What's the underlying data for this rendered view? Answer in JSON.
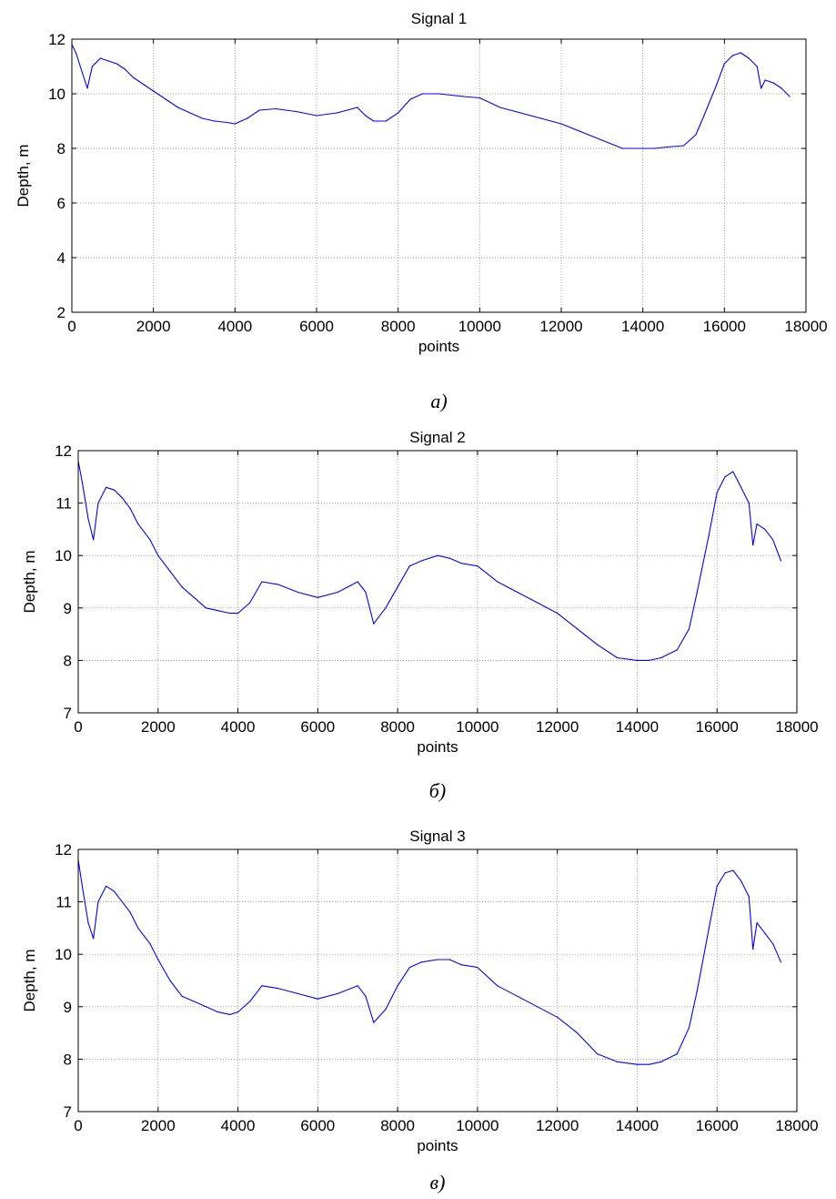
{
  "colors": {
    "line": "#0000ff",
    "axes": "#000000",
    "grid": "#808080",
    "background": "#ffffff"
  },
  "chart_data": [
    {
      "type": "line",
      "title": "Signal 1",
      "caption": "a)",
      "xlabel": "points",
      "ylabel": "Depth, m",
      "xlim": [
        0,
        18000
      ],
      "ylim": [
        2,
        12
      ],
      "xticks": [
        0,
        2000,
        4000,
        6000,
        8000,
        10000,
        12000,
        14000,
        16000,
        18000
      ],
      "yticks": [
        2,
        4,
        6,
        8,
        10,
        12
      ],
      "grid": true,
      "series": [
        {
          "x": [
            0,
            100,
            250,
            380,
            500,
            700,
            900,
            1100,
            1300,
            1500,
            1800,
            2000,
            2300,
            2600,
            2900,
            3200,
            3500,
            3800,
            4000,
            4300,
            4600,
            5000,
            5500,
            6000,
            6500,
            7000,
            7200,
            7400,
            7700,
            8000,
            8300,
            8600,
            9000,
            9300,
            9600,
            10000,
            10500,
            11000,
            11500,
            12000,
            12500,
            13000,
            13500,
            14000,
            14300,
            14600,
            15000,
            15300,
            15500,
            15800,
            16000,
            16200,
            16400,
            16600,
            16800,
            16900,
            17000,
            17200,
            17400,
            17600
          ],
          "y": [
            11.8,
            11.5,
            10.8,
            10.2,
            11.0,
            11.3,
            11.2,
            11.1,
            10.9,
            10.6,
            10.3,
            10.1,
            9.8,
            9.5,
            9.3,
            9.1,
            9.0,
            8.95,
            8.9,
            9.1,
            9.4,
            9.45,
            9.35,
            9.2,
            9.3,
            9.5,
            9.2,
            9.0,
            9.0,
            9.3,
            9.8,
            10.0,
            10.0,
            9.95,
            9.9,
            9.85,
            9.5,
            9.3,
            9.1,
            8.9,
            8.6,
            8.3,
            8.0,
            8.0,
            8.0,
            8.05,
            8.1,
            8.5,
            9.2,
            10.3,
            11.1,
            11.4,
            11.5,
            11.3,
            11.0,
            10.2,
            10.5,
            10.4,
            10.2,
            9.9
          ]
        }
      ]
    },
    {
      "type": "line",
      "title": "Signal 2",
      "caption": "б)",
      "xlabel": "points",
      "ylabel": "Depth, m",
      "xlim": [
        0,
        18000
      ],
      "ylim": [
        7,
        12
      ],
      "xticks": [
        0,
        2000,
        4000,
        6000,
        8000,
        10000,
        12000,
        14000,
        16000,
        18000
      ],
      "yticks": [
        7,
        8,
        9,
        10,
        11,
        12
      ],
      "grid": true,
      "series": [
        {
          "x": [
            0,
            100,
            250,
            380,
            500,
            700,
            900,
            1100,
            1300,
            1500,
            1800,
            2000,
            2300,
            2600,
            2900,
            3200,
            3500,
            3800,
            4000,
            4300,
            4600,
            5000,
            5500,
            6000,
            6500,
            7000,
            7200,
            7400,
            7700,
            8000,
            8300,
            8600,
            9000,
            9300,
            9600,
            10000,
            10500,
            11000,
            11500,
            12000,
            12500,
            13000,
            13500,
            14000,
            14300,
            14600,
            15000,
            15300,
            15500,
            15800,
            16000,
            16200,
            16400,
            16600,
            16800,
            16900,
            17000,
            17200,
            17400,
            17600
          ],
          "y": [
            11.8,
            11.4,
            10.7,
            10.3,
            11.0,
            11.3,
            11.25,
            11.1,
            10.9,
            10.6,
            10.3,
            10.0,
            9.7,
            9.4,
            9.2,
            9.0,
            8.95,
            8.9,
            8.9,
            9.1,
            9.5,
            9.45,
            9.3,
            9.2,
            9.3,
            9.5,
            9.3,
            8.7,
            9.0,
            9.4,
            9.8,
            9.9,
            10.0,
            9.95,
            9.85,
            9.8,
            9.5,
            9.3,
            9.1,
            8.9,
            8.6,
            8.3,
            8.05,
            8.0,
            8.0,
            8.05,
            8.2,
            8.6,
            9.3,
            10.4,
            11.2,
            11.5,
            11.6,
            11.3,
            11.0,
            10.2,
            10.6,
            10.5,
            10.3,
            9.9
          ]
        }
      ]
    },
    {
      "type": "line",
      "title": "Signal 3",
      "caption": "в)",
      "xlabel": "points",
      "ylabel": "Depth, m",
      "xlim": [
        0,
        18000
      ],
      "ylim": [
        7,
        12
      ],
      "xticks": [
        0,
        2000,
        4000,
        6000,
        8000,
        10000,
        12000,
        14000,
        16000,
        18000
      ],
      "yticks": [
        7,
        8,
        9,
        10,
        11,
        12
      ],
      "grid": true,
      "series": [
        {
          "x": [
            0,
            100,
            250,
            380,
            500,
            700,
            900,
            1100,
            1300,
            1500,
            1800,
            2000,
            2300,
            2600,
            2900,
            3200,
            3500,
            3800,
            4000,
            4300,
            4600,
            5000,
            5500,
            6000,
            6500,
            7000,
            7200,
            7400,
            7700,
            8000,
            8300,
            8600,
            9000,
            9300,
            9600,
            10000,
            10500,
            11000,
            11500,
            12000,
            12500,
            13000,
            13500,
            14000,
            14300,
            14600,
            15000,
            15300,
            15500,
            15800,
            16000,
            16200,
            16400,
            16600,
            16800,
            16900,
            17000,
            17200,
            17400,
            17600
          ],
          "y": [
            11.8,
            11.3,
            10.6,
            10.3,
            11.0,
            11.3,
            11.2,
            11.0,
            10.8,
            10.5,
            10.2,
            9.9,
            9.5,
            9.2,
            9.1,
            9.0,
            8.9,
            8.85,
            8.9,
            9.1,
            9.4,
            9.35,
            9.25,
            9.15,
            9.25,
            9.4,
            9.2,
            8.7,
            8.95,
            9.4,
            9.75,
            9.85,
            9.9,
            9.9,
            9.8,
            9.75,
            9.4,
            9.2,
            9.0,
            8.8,
            8.5,
            8.1,
            7.95,
            7.9,
            7.9,
            7.95,
            8.1,
            8.6,
            9.3,
            10.5,
            11.3,
            11.55,
            11.6,
            11.4,
            11.1,
            10.1,
            10.6,
            10.4,
            10.2,
            9.85
          ]
        }
      ]
    }
  ]
}
